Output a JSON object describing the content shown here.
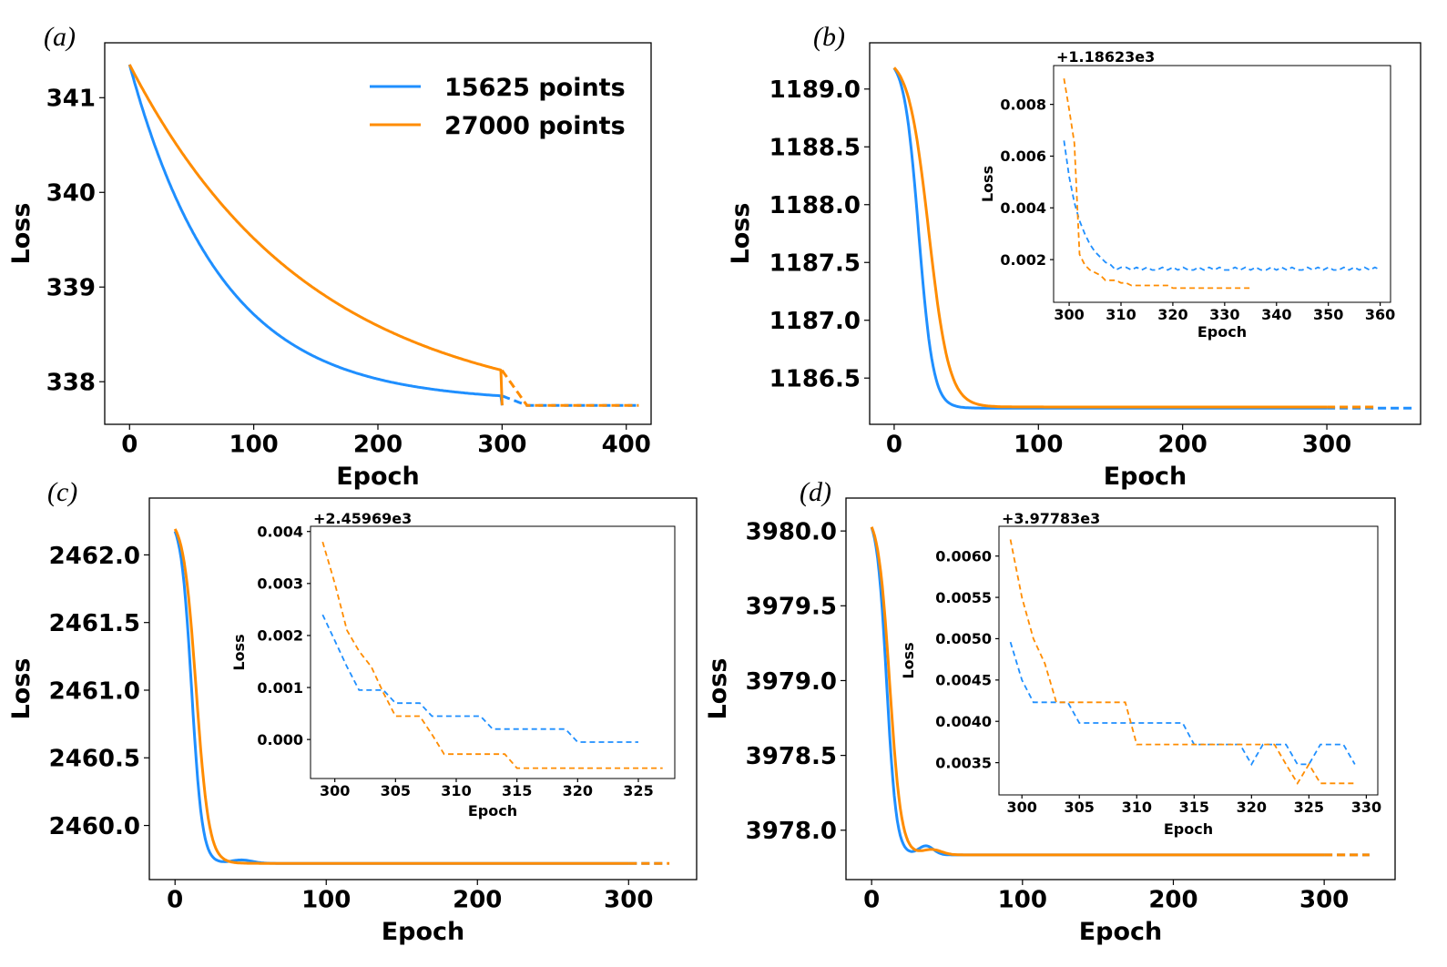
{
  "colors": {
    "s15625": "#1f8fff",
    "s27000": "#ff8c00",
    "axis": "#000000"
  },
  "legend": [
    {
      "label": "15625 points",
      "color": "#1f8fff"
    },
    {
      "label": "27000 points",
      "color": "#ff8c00"
    }
  ],
  "chart_data": [
    {
      "panel": "(a)",
      "type": "line",
      "xlabel": "Epoch",
      "ylabel": "Loss",
      "xlim": [
        -20,
        420
      ],
      "ylim": [
        337.55,
        341.58
      ],
      "xticks": [
        0,
        100,
        200,
        300,
        400
      ],
      "xtick_labels": [
        "0",
        "100",
        "200",
        "300",
        "400"
      ],
      "yticks": [
        338,
        339,
        340,
        341
      ],
      "ytick_labels": [
        "338",
        "339",
        "340",
        "341"
      ],
      "legend_position": "upper-right",
      "series": [
        {
          "name": "15625 points",
          "color": "#1f8fff",
          "model": "exp",
          "start": 341.35,
          "end": 337.79,
          "k": 0.0135,
          "solid_until": 300,
          "solid_end_value": 337.85,
          "dashed_until": 410,
          "dashed_value": 337.75
        },
        {
          "name": "27000 points",
          "color": "#ff8c00",
          "model": "exp",
          "start": 341.35,
          "end": 337.75,
          "k": 0.007,
          "solid_until": 300,
          "solid_end_value": 338.12,
          "dashed_until": 410,
          "dashed_value": 337.75
        }
      ]
    },
    {
      "panel": "(b)",
      "type": "line",
      "xlabel": "Epoch",
      "ylabel": "Loss",
      "xlim": [
        -17,
        365
      ],
      "ylim": [
        1186.1,
        1189.4
      ],
      "xticks": [
        0,
        100,
        200,
        300
      ],
      "xtick_labels": [
        "0",
        "100",
        "200",
        "300"
      ],
      "yticks": [
        1186.5,
        1187.0,
        1187.5,
        1188.0,
        1188.5,
        1189.0
      ],
      "ytick_labels": [
        "1186.5",
        "1187.0",
        "1187.5",
        "1188.0",
        "1188.5",
        "1189.0"
      ],
      "series": [
        {
          "name": "15625 points",
          "color": "#1f8fff",
          "model": "sigmoid",
          "start": 1189.28,
          "end": 1186.24,
          "mid": 17,
          "width": 5,
          "solid_until": 300,
          "dashed_until": 360
        },
        {
          "name": "27000 points",
          "color": "#ff8c00",
          "model": "sigmoid",
          "start": 1189.28,
          "end": 1186.25,
          "mid": 24,
          "width": 7,
          "solid_until": 300,
          "dashed_until": 335
        }
      ],
      "inset": {
        "offset_label": "+1.18623e3",
        "xlabel": "Epoch",
        "ylabel": "Loss",
        "xlim": [
          297,
          362
        ],
        "ylim": [
          0.00035,
          0.0095
        ],
        "xticks": [
          300,
          310,
          320,
          330,
          340,
          350,
          360
        ],
        "xtick_labels": [
          "300",
          "310",
          "320",
          "330",
          "340",
          "350",
          "360"
        ],
        "yticks": [
          0.002,
          0.004,
          0.006,
          0.008
        ],
        "ytick_labels": [
          "0.002",
          "0.004",
          "0.006",
          "0.008"
        ],
        "series": [
          {
            "name": "15625 points",
            "color": "#1f8fff",
            "x": [
              299,
              300,
              301,
              302,
              303,
              304,
              305,
              306,
              307,
              308,
              309,
              310,
              311,
              312,
              313,
              314,
              315,
              316,
              317,
              318,
              319,
              320,
              321,
              322,
              323,
              324,
              325,
              326,
              327,
              328,
              329,
              330,
              331,
              332,
              333,
              334,
              335,
              336,
              337,
              338,
              339,
              340,
              341,
              342,
              343,
              344,
              345,
              346,
              347,
              348,
              349,
              350,
              351,
              352,
              353,
              354,
              355,
              356,
              357,
              358,
              359,
              360
            ],
            "y": [
              0.0066,
              0.0052,
              0.0042,
              0.0035,
              0.003,
              0.0026,
              0.0023,
              0.0021,
              0.0019,
              0.0018,
              0.0016,
              0.0017,
              0.0017,
              0.0016,
              0.0017,
              0.0016,
              0.0017,
              0.0016,
              0.0016,
              0.0017,
              0.0016,
              0.0017,
              0.0016,
              0.0017,
              0.0016,
              0.0016,
              0.0017,
              0.0016,
              0.0017,
              0.0016,
              0.0017,
              0.0016,
              0.0016,
              0.0017,
              0.0016,
              0.0017,
              0.0016,
              0.0017,
              0.0016,
              0.0016,
              0.0017,
              0.0016,
              0.0017,
              0.0016,
              0.0017,
              0.0016,
              0.0016,
              0.0017,
              0.0016,
              0.0017,
              0.0016,
              0.0017,
              0.0016,
              0.0016,
              0.0017,
              0.0016,
              0.0017,
              0.0016,
              0.0017,
              0.0016,
              0.0017,
              0.0016
            ]
          },
          {
            "name": "27000 points",
            "color": "#ff8c00",
            "x": [
              299,
              300,
              301,
              302,
              303,
              304,
              305,
              306,
              307,
              308,
              309,
              310,
              311,
              312,
              313,
              314,
              315,
              316,
              317,
              318,
              319,
              320,
              321,
              322,
              323,
              324,
              325,
              326,
              327,
              328,
              329,
              330,
              331,
              332,
              333,
              334,
              335
            ],
            "y": [
              0.009,
              0.0078,
              0.0065,
              0.0022,
              0.0018,
              0.0016,
              0.0015,
              0.0014,
              0.0012,
              0.0012,
              0.0012,
              0.0011,
              0.0011,
              0.001,
              0.001,
              0.001,
              0.001,
              0.001,
              0.001,
              0.001,
              0.001,
              0.0009,
              0.0009,
              0.0009,
              0.0009,
              0.0009,
              0.0009,
              0.0009,
              0.0009,
              0.0009,
              0.0009,
              0.0009,
              0.0009,
              0.0009,
              0.0009,
              0.0009,
              0.0009
            ]
          }
        ]
      }
    },
    {
      "panel": "(c)",
      "type": "line",
      "xlabel": "Epoch",
      "ylabel": "Loss",
      "xlim": [
        -17,
        345
      ],
      "ylim": [
        2459.6,
        2462.42
      ],
      "xticks": [
        0,
        100,
        200,
        300
      ],
      "xtick_labels": [
        "0",
        "100",
        "200",
        "300"
      ],
      "yticks": [
        2460.0,
        2460.5,
        2461.0,
        2461.5,
        2462.0
      ],
      "ytick_labels": [
        "2460.0",
        "2460.5",
        "2461.0",
        "2461.5",
        "2462.0"
      ],
      "series": [
        {
          "name": "15625 points",
          "color": "#1f8fff",
          "model": "sigmoid_bump",
          "start": 2462.28,
          "end": 2459.72,
          "mid": 11,
          "width": 3.5,
          "bump_amp": 0.025,
          "bump_center": 44,
          "bump_sigma": 10,
          "solid_until": 300,
          "dashed_until": 325
        },
        {
          "name": "27000 points",
          "color": "#ff8c00",
          "model": "sigmoid",
          "start": 2462.28,
          "end": 2459.72,
          "mid": 14,
          "width": 4.2,
          "solid_until": 300,
          "dashed_until": 327
        }
      ],
      "inset": {
        "offset_label": "+2.45969e3",
        "xlabel": "Epoch",
        "ylabel": "Loss",
        "xlim": [
          298,
          328
        ],
        "ylim": [
          -0.00075,
          0.0041
        ],
        "xticks": [
          300,
          305,
          310,
          315,
          320,
          325
        ],
        "xtick_labels": [
          "300",
          "305",
          "310",
          "315",
          "320",
          "325"
        ],
        "yticks": [
          0.0,
          0.001,
          0.002,
          0.003,
          0.004
        ],
        "ytick_labels": [
          "0.000",
          "0.001",
          "0.002",
          "0.003",
          "0.004"
        ],
        "series": [
          {
            "name": "15625 points",
            "color": "#1f8fff",
            "x": [
              299,
              300,
              301,
              302,
              303,
              304,
              305,
              306,
              307,
              308,
              309,
              310,
              311,
              312,
              313,
              314,
              315,
              316,
              317,
              318,
              319,
              320,
              321,
              322,
              323,
              324,
              325
            ],
            "y": [
              0.0024,
              0.0019,
              0.0014,
              0.00095,
              0.00095,
              0.00095,
              0.0007,
              0.0007,
              0.0007,
              0.00045,
              0.00045,
              0.00045,
              0.00045,
              0.00045,
              0.0002,
              0.0002,
              0.0002,
              0.0002,
              0.0002,
              0.0002,
              0.0002,
              -5e-05,
              -5e-05,
              -5e-05,
              -5e-05,
              -5e-05,
              -5e-05
            ]
          },
          {
            "name": "27000 points",
            "color": "#ff8c00",
            "x": [
              299,
              300,
              301,
              302,
              303,
              304,
              305,
              306,
              307,
              308,
              309,
              310,
              311,
              312,
              313,
              314,
              315,
              316,
              317,
              318,
              319,
              320,
              321,
              322,
              323,
              324,
              325,
              326,
              327
            ],
            "y": [
              0.0038,
              0.003,
              0.0021,
              0.0017,
              0.0014,
              0.0009,
              0.00045,
              0.00045,
              0.00045,
              0.0001,
              -0.00028,
              -0.00028,
              -0.00028,
              -0.00028,
              -0.00028,
              -0.00028,
              -0.00055,
              -0.00055,
              -0.00055,
              -0.00055,
              -0.00055,
              -0.00055,
              -0.00055,
              -0.00055,
              -0.00055,
              -0.00055,
              -0.00055,
              -0.00055,
              -0.00055
            ]
          }
        ]
      }
    },
    {
      "panel": "(d)",
      "type": "line",
      "xlabel": "Epoch",
      "ylabel": "Loss",
      "xlim": [
        -17,
        347
      ],
      "ylim": [
        3977.67,
        3980.22
      ],
      "xticks": [
        0,
        100,
        200,
        300
      ],
      "xtick_labels": [
        "0",
        "100",
        "200",
        "300"
      ],
      "yticks": [
        3978.0,
        3978.5,
        3979.0,
        3979.5,
        3980.0
      ],
      "ytick_labels": [
        "3978.0",
        "3978.5",
        "3979.0",
        "3979.5",
        "3980.0"
      ],
      "series": [
        {
          "name": "15625 points",
          "color": "#1f8fff",
          "model": "sigmoid_bump",
          "start": 3980.12,
          "end": 3977.835,
          "mid": 10,
          "width": 3.2,
          "bump_amp": 0.06,
          "bump_center": 36,
          "bump_sigma": 7,
          "solid_until": 300,
          "dashed_until": 330
        },
        {
          "name": "27000 points",
          "color": "#ff8c00",
          "model": "sigmoid_bump",
          "start": 3980.12,
          "end": 3977.835,
          "mid": 12,
          "width": 3.8,
          "bump_amp": 0.035,
          "bump_center": 40,
          "bump_sigma": 9,
          "solid_until": 300,
          "dashed_until": 330
        }
      ],
      "inset": {
        "offset_label": "+3.97783e3",
        "xlabel": "Epoch",
        "ylabel": "Loss",
        "xlim": [
          298,
          331
        ],
        "ylim": [
          0.00311,
          0.00636
        ],
        "xticks": [
          300,
          305,
          310,
          315,
          320,
          325,
          330
        ],
        "xtick_labels": [
          "300",
          "305",
          "310",
          "315",
          "320",
          "325",
          "330"
        ],
        "yticks": [
          0.0035,
          0.004,
          0.0045,
          0.005,
          0.0055,
          0.006
        ],
        "ytick_labels": [
          "0.0035",
          "0.0040",
          "0.0045",
          "0.0050",
          "0.0055",
          "0.0060"
        ],
        "series": [
          {
            "name": "15625 points",
            "color": "#1f8fff",
            "x": [
              299,
              300,
              301,
              302,
              303,
              304,
              305,
              306,
              307,
              308,
              309,
              310,
              311,
              312,
              313,
              314,
              315,
              316,
              317,
              318,
              319,
              320,
              321,
              322,
              323,
              324,
              325,
              326,
              327,
              328,
              329
            ],
            "y": [
              0.00496,
              0.0045,
              0.00423,
              0.00423,
              0.00423,
              0.00423,
              0.00398,
              0.00398,
              0.00398,
              0.00398,
              0.00398,
              0.00398,
              0.00398,
              0.00398,
              0.00398,
              0.00398,
              0.00372,
              0.00372,
              0.00372,
              0.00372,
              0.00372,
              0.00348,
              0.00372,
              0.00372,
              0.00372,
              0.00348,
              0.00348,
              0.00372,
              0.00372,
              0.00372,
              0.00348
            ]
          },
          {
            "name": "27000 points",
            "color": "#ff8c00",
            "x": [
              299,
              300,
              301,
              302,
              303,
              304,
              305,
              306,
              307,
              308,
              309,
              310,
              311,
              312,
              313,
              314,
              315,
              316,
              317,
              318,
              319,
              320,
              321,
              322,
              323,
              324,
              325,
              326,
              327,
              328,
              329
            ],
            "y": [
              0.0062,
              0.0055,
              0.005,
              0.0047,
              0.00423,
              0.00423,
              0.00423,
              0.00423,
              0.00423,
              0.00423,
              0.00423,
              0.00372,
              0.00372,
              0.00372,
              0.00372,
              0.00372,
              0.00372,
              0.00372,
              0.00372,
              0.00372,
              0.00372,
              0.00372,
              0.00372,
              0.00372,
              0.00348,
              0.00325,
              0.00348,
              0.00325,
              0.00325,
              0.00325,
              0.00325
            ]
          }
        ]
      }
    }
  ]
}
